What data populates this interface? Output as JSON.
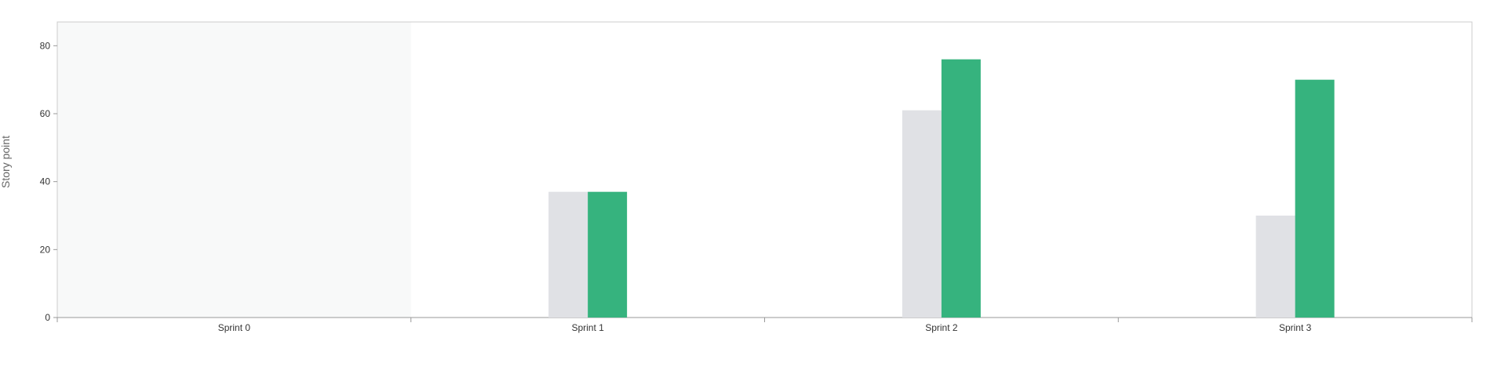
{
  "chart_data": {
    "type": "bar",
    "title": "",
    "xlabel": "",
    "ylabel": "Story point",
    "categories": [
      "Sprint 0",
      "Sprint 1",
      "Sprint 2",
      "Sprint 3"
    ],
    "series": [
      {
        "color": "#e0e1e5",
        "values": [
          0,
          37,
          61,
          30
        ]
      },
      {
        "color": "#36b37e",
        "values": [
          0,
          37,
          76,
          70
        ]
      }
    ],
    "ylim": [
      0,
      87
    ],
    "yticks": [
      0,
      20,
      40,
      60,
      80
    ],
    "grid": false,
    "legend": "none",
    "highlighted_category": "Sprint 0",
    "highlight_color": "#f8f9f9",
    "frame_color": "#cccccc",
    "axis_color": "#999999"
  }
}
